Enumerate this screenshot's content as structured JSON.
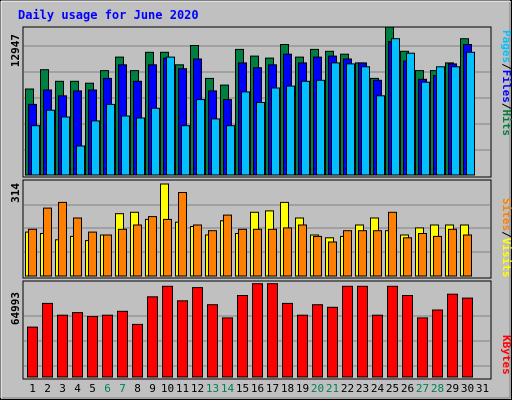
{
  "chart_data": [
    {
      "type": "bar",
      "title": "Daily usage for June 2020",
      "ylabel": "Pages / Files / Hits",
      "ylabel_parts": [
        "Pages",
        "/",
        "Files",
        "/",
        "Hits"
      ],
      "y_tick": "12947",
      "ylim": [
        0,
        14900
      ],
      "categories": [
        "1",
        "2",
        "3",
        "4",
        "5",
        "6",
        "7",
        "8",
        "9",
        "10",
        "11",
        "12",
        "13",
        "14",
        "15",
        "16",
        "17",
        "18",
        "19",
        "20",
        "21",
        "22",
        "23",
        "24",
        "25",
        "26",
        "27",
        "28",
        "29",
        "30",
        "31"
      ],
      "weekend_days": [
        "6",
        "7",
        "13",
        "14",
        "20",
        "21",
        "27",
        "28"
      ],
      "series": [
        {
          "name": "Hits",
          "color": "#008040",
          "values": [
            8900,
            10900,
            9700,
            9700,
            9500,
            10800,
            12200,
            10800,
            12700,
            12700,
            11400,
            13400,
            10000,
            9300,
            13000,
            12300,
            12100,
            13500,
            12200,
            13000,
            12800,
            12500,
            11600,
            10000,
            15300,
            12800,
            10800,
            10800,
            11600,
            14100,
            0
          ]
        },
        {
          "name": "Files",
          "color": "#0000ff",
          "values": [
            7300,
            8800,
            8200,
            8700,
            8800,
            10000,
            11400,
            9700,
            11400,
            12100,
            11000,
            12000,
            8700,
            7800,
            11600,
            11100,
            11400,
            12500,
            11600,
            12200,
            12300,
            12000,
            11600,
            9800,
            13800,
            11800,
            9900,
            10300,
            11500,
            13500,
            0
          ]
        },
        {
          "name": "Pages",
          "color": "#00c0ff",
          "values": [
            5100,
            6700,
            6000,
            3000,
            5600,
            7300,
            6100,
            5900,
            6900,
            12200,
            5100,
            7800,
            5800,
            5100,
            8600,
            7500,
            9000,
            9200,
            9700,
            9800,
            11600,
            11500,
            11200,
            8200,
            14100,
            12600,
            9600,
            11200,
            11200,
            12700,
            0
          ]
        }
      ]
    },
    {
      "type": "bar",
      "ylabel": "Sites / Visits",
      "ylabel_parts": [
        "Sites",
        "/",
        "Visits"
      ],
      "y_tick": "314",
      "ylim": [
        0,
        325
      ],
      "categories": [
        "1",
        "2",
        "3",
        "4",
        "5",
        "6",
        "7",
        "8",
        "9",
        "10",
        "11",
        "12",
        "13",
        "14",
        "15",
        "16",
        "17",
        "18",
        "19",
        "20",
        "21",
        "22",
        "23",
        "24",
        "25",
        "26",
        "27",
        "28",
        "29",
        "30",
        "31"
      ],
      "weekend_days": [
        "6",
        "7",
        "13",
        "14",
        "20",
        "21",
        "27",
        "28"
      ],
      "series": [
        {
          "name": "Visits",
          "color": "#ffff00",
          "values": [
            155,
            150,
            128,
            140,
            125,
            145,
            220,
            225,
            200,
            325,
            190,
            175,
            145,
            195,
            150,
            225,
            230,
            260,
            205,
            145,
            135,
            140,
            180,
            205,
            160,
            145,
            170,
            180,
            180,
            180,
            0
          ]
        },
        {
          "name": "Sites",
          "color": "#ff8000",
          "values": [
            165,
            240,
            260,
            205,
            155,
            145,
            165,
            180,
            210,
            200,
            295,
            180,
            160,
            215,
            165,
            165,
            165,
            170,
            180,
            140,
            120,
            160,
            160,
            160,
            225,
            135,
            150,
            140,
            165,
            145,
            0
          ]
        }
      ]
    },
    {
      "type": "bar",
      "ylabel": "KBytes",
      "y_tick": "64993",
      "ylim": [
        0,
        70000
      ],
      "categories": [
        "1",
        "2",
        "3",
        "4",
        "5",
        "6",
        "7",
        "8",
        "9",
        "10",
        "11",
        "12",
        "13",
        "14",
        "15",
        "16",
        "17",
        "18",
        "19",
        "20",
        "21",
        "22",
        "23",
        "24",
        "25",
        "26",
        "27",
        "28",
        "29",
        "30",
        "31"
      ],
      "weekend_days": [
        "6",
        "7",
        "13",
        "14",
        "20",
        "21",
        "27",
        "28"
      ],
      "series": [
        {
          "name": "KBytes",
          "color": "#ff0000",
          "values": [
            38000,
            56000,
            47000,
            49000,
            46000,
            47000,
            50000,
            40000,
            61000,
            69000,
            58000,
            68000,
            55000,
            45000,
            62000,
            71000,
            71000,
            56000,
            47000,
            55000,
            53000,
            69000,
            69000,
            47000,
            69000,
            62000,
            45000,
            51000,
            63000,
            60000,
            0
          ]
        }
      ]
    }
  ]
}
